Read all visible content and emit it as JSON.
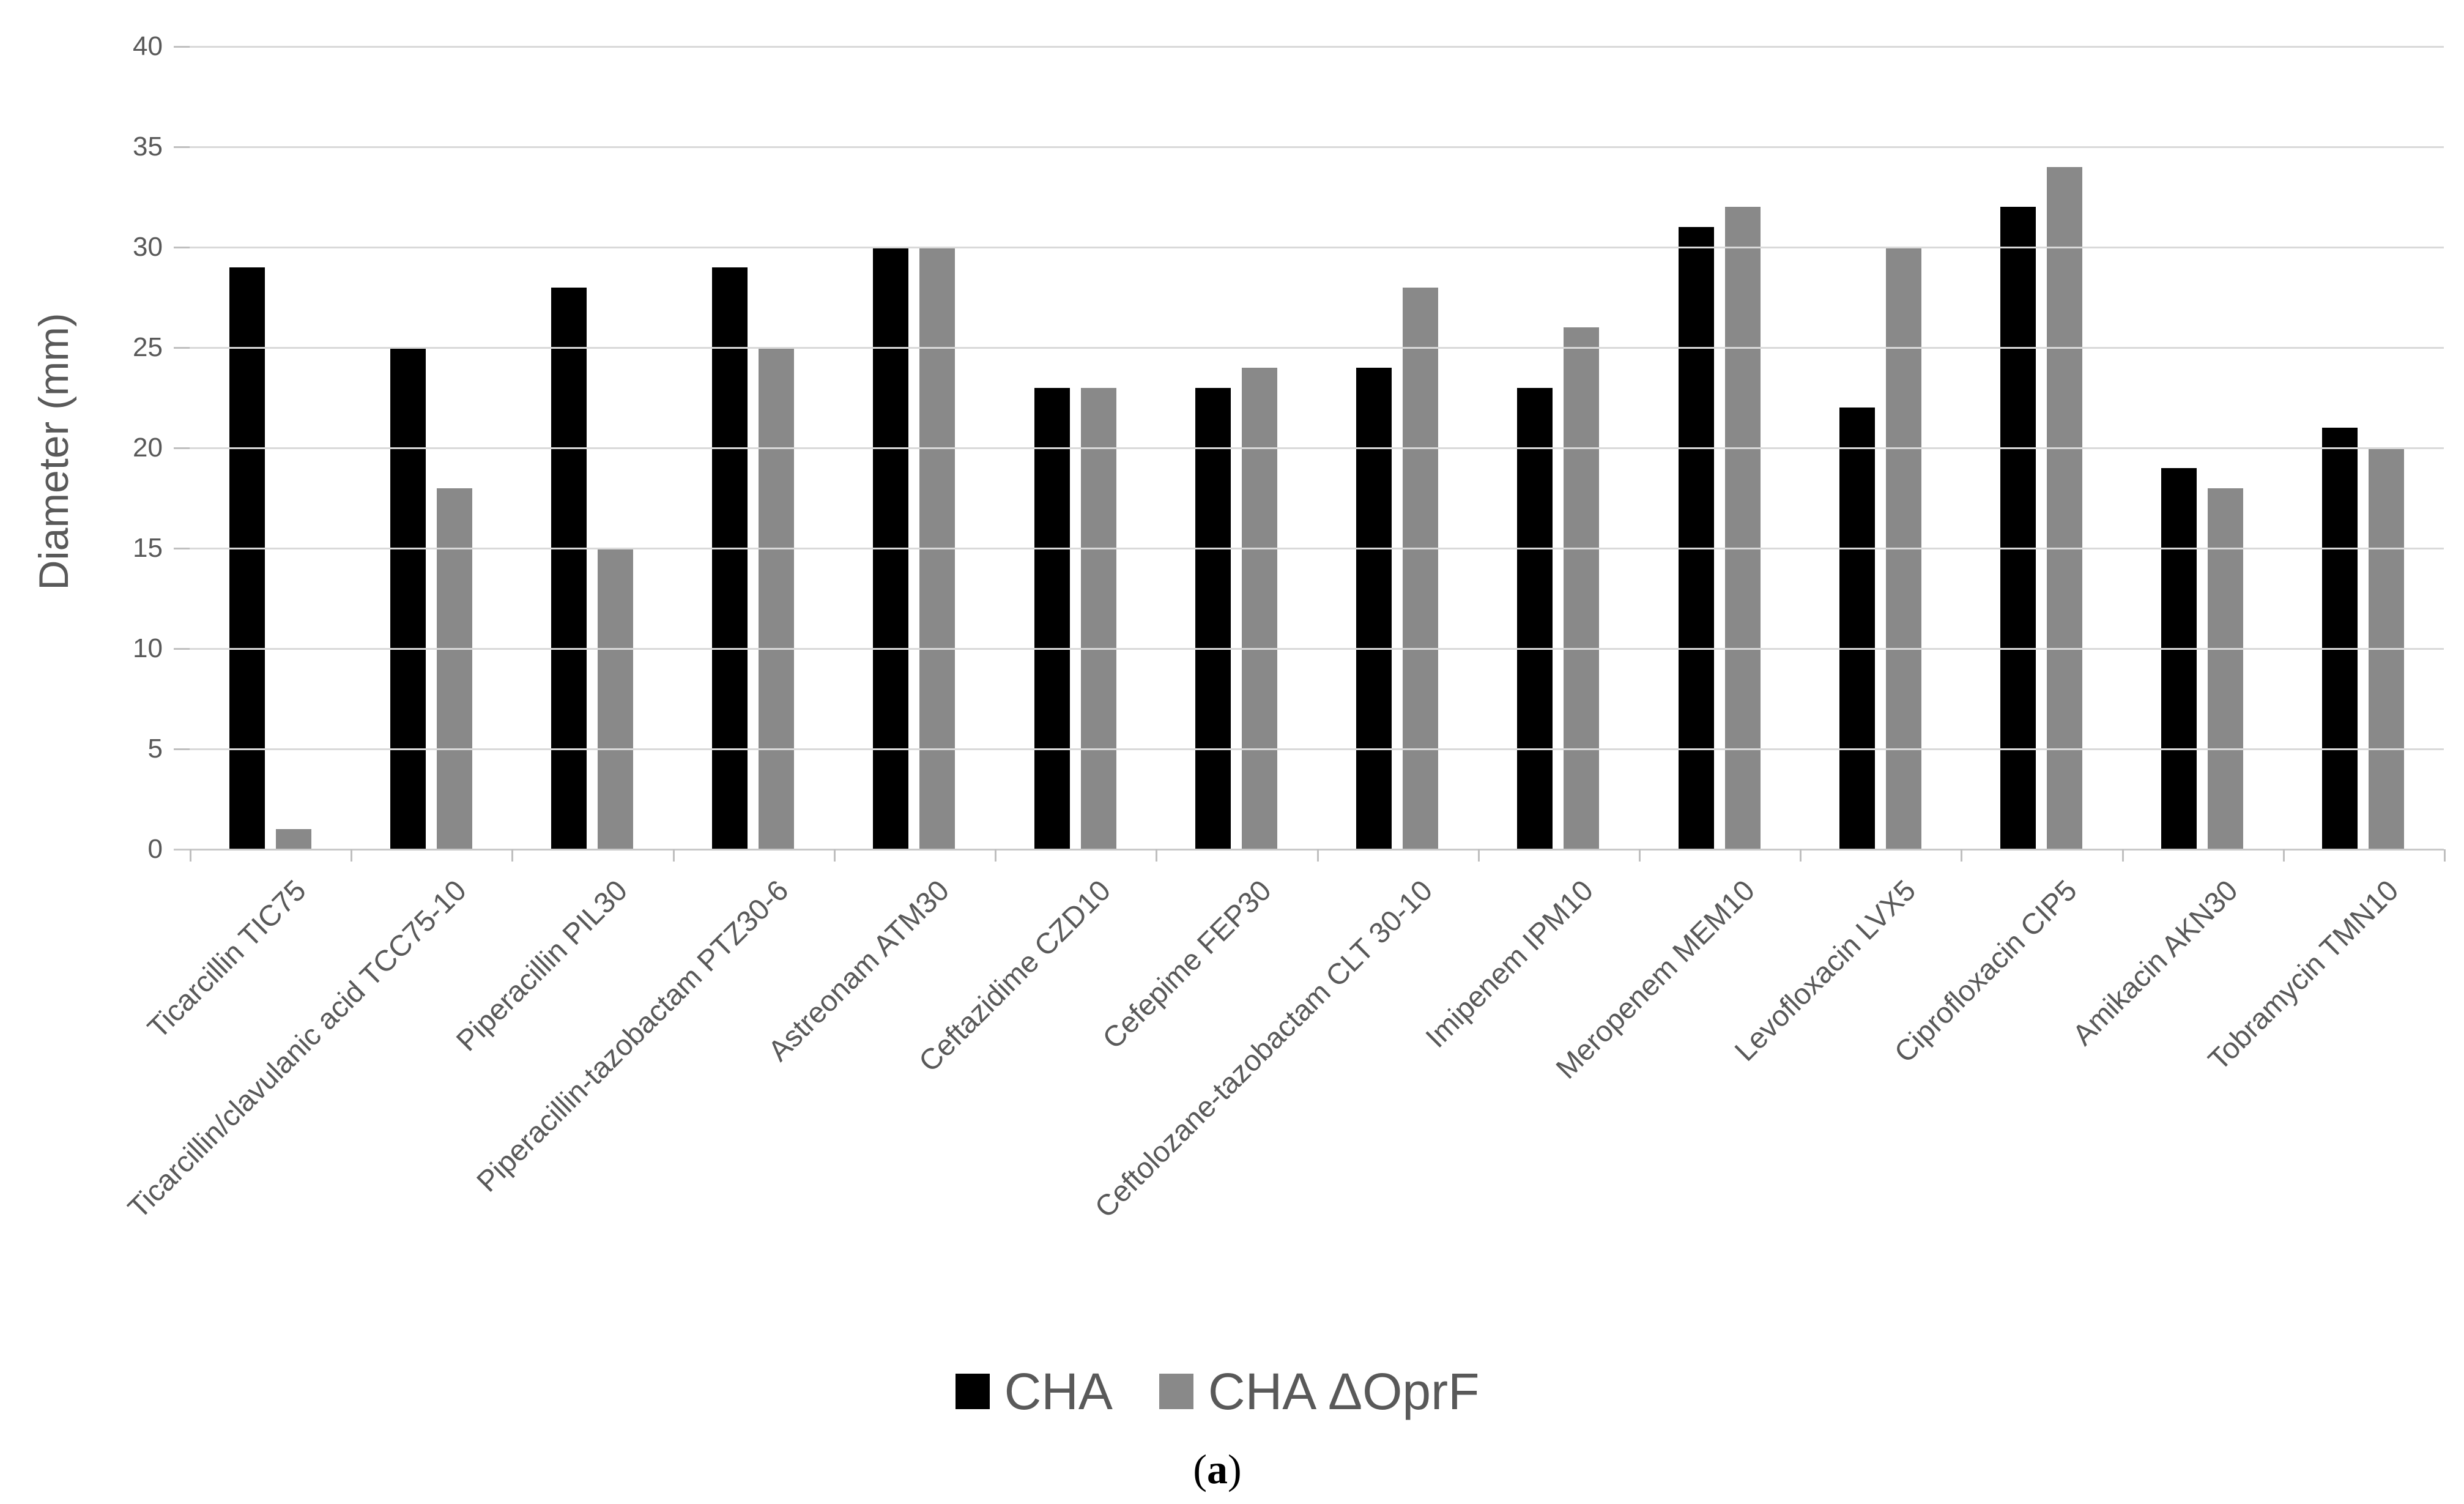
{
  "chart_data": {
    "type": "bar",
    "title": "",
    "ylabel": "Diameter (mm)",
    "xlabel": "",
    "ylim": [
      0,
      40
    ],
    "yticks": [
      0,
      5,
      10,
      15,
      20,
      25,
      30,
      35,
      40
    ],
    "grid": true,
    "legend_position": "bottom-center",
    "categories": [
      "Ticarcillin TIC75",
      "Ticarcillin/clavulanic acid TCC75-10",
      "Piperacillin PIL30",
      "Piperacillin-tazobactam PTZ30-6",
      "Astreonam ATM30",
      "Ceftazidime CZD10",
      "Cefepime FEP30",
      "Ceftolozane-tazobactam CLT 30-10",
      "Imipenem IPM10",
      "Meropenem MEM10",
      "Levofloxacin LVX5",
      "Ciprofloxacin CIP5",
      "Amikacin AKN30",
      "Tobramycin TMN10"
    ],
    "series": [
      {
        "name": "CHA",
        "color": "#000000",
        "values": [
          29,
          25,
          28,
          29,
          30,
          23,
          23,
          24,
          23,
          31,
          22,
          32,
          19,
          21
        ]
      },
      {
        "name": "CHA ΔOprF",
        "color": "#898989",
        "values": [
          1,
          18,
          15,
          25,
          30,
          23,
          24,
          28,
          26,
          32,
          30,
          34,
          18,
          20
        ]
      }
    ]
  },
  "caption": {
    "open": "(",
    "letter": "a",
    "close": ")"
  },
  "colors": {
    "background": "#ffffff",
    "gridline": "#d9d9d9",
    "axis_line": "#c9c9c9",
    "tick_mark": "#bfbfbf",
    "text": "#595959"
  }
}
